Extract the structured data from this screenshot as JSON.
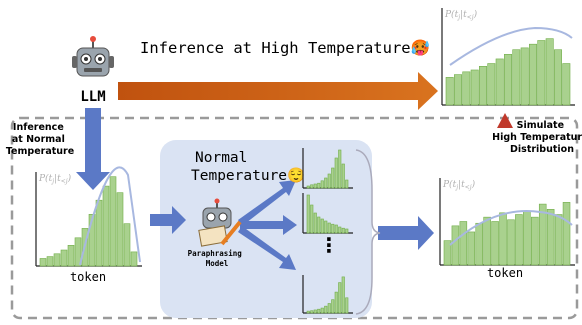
{
  "header": {
    "title": "Inference at High Temperature",
    "emoji": "🥵"
  },
  "llm": {
    "label": "LLM"
  },
  "axis_label": {
    "p": "P(t",
    "j": "j",
    "bar": "|t",
    "lt": "<j",
    "close": ")"
  },
  "left": {
    "caption": [
      "Inference",
      "at Normal",
      "Temperature"
    ],
    "x_label": "token"
  },
  "middle": {
    "title": [
      "Normal",
      "Temperature"
    ],
    "emoji": "😌",
    "model": [
      "Paraphrasing",
      "Model"
    ],
    "dots": "⋮"
  },
  "right": {
    "caption": [
      "Simulate",
      "High Temperature",
      "Distribution"
    ],
    "x_label": "token"
  }
}
